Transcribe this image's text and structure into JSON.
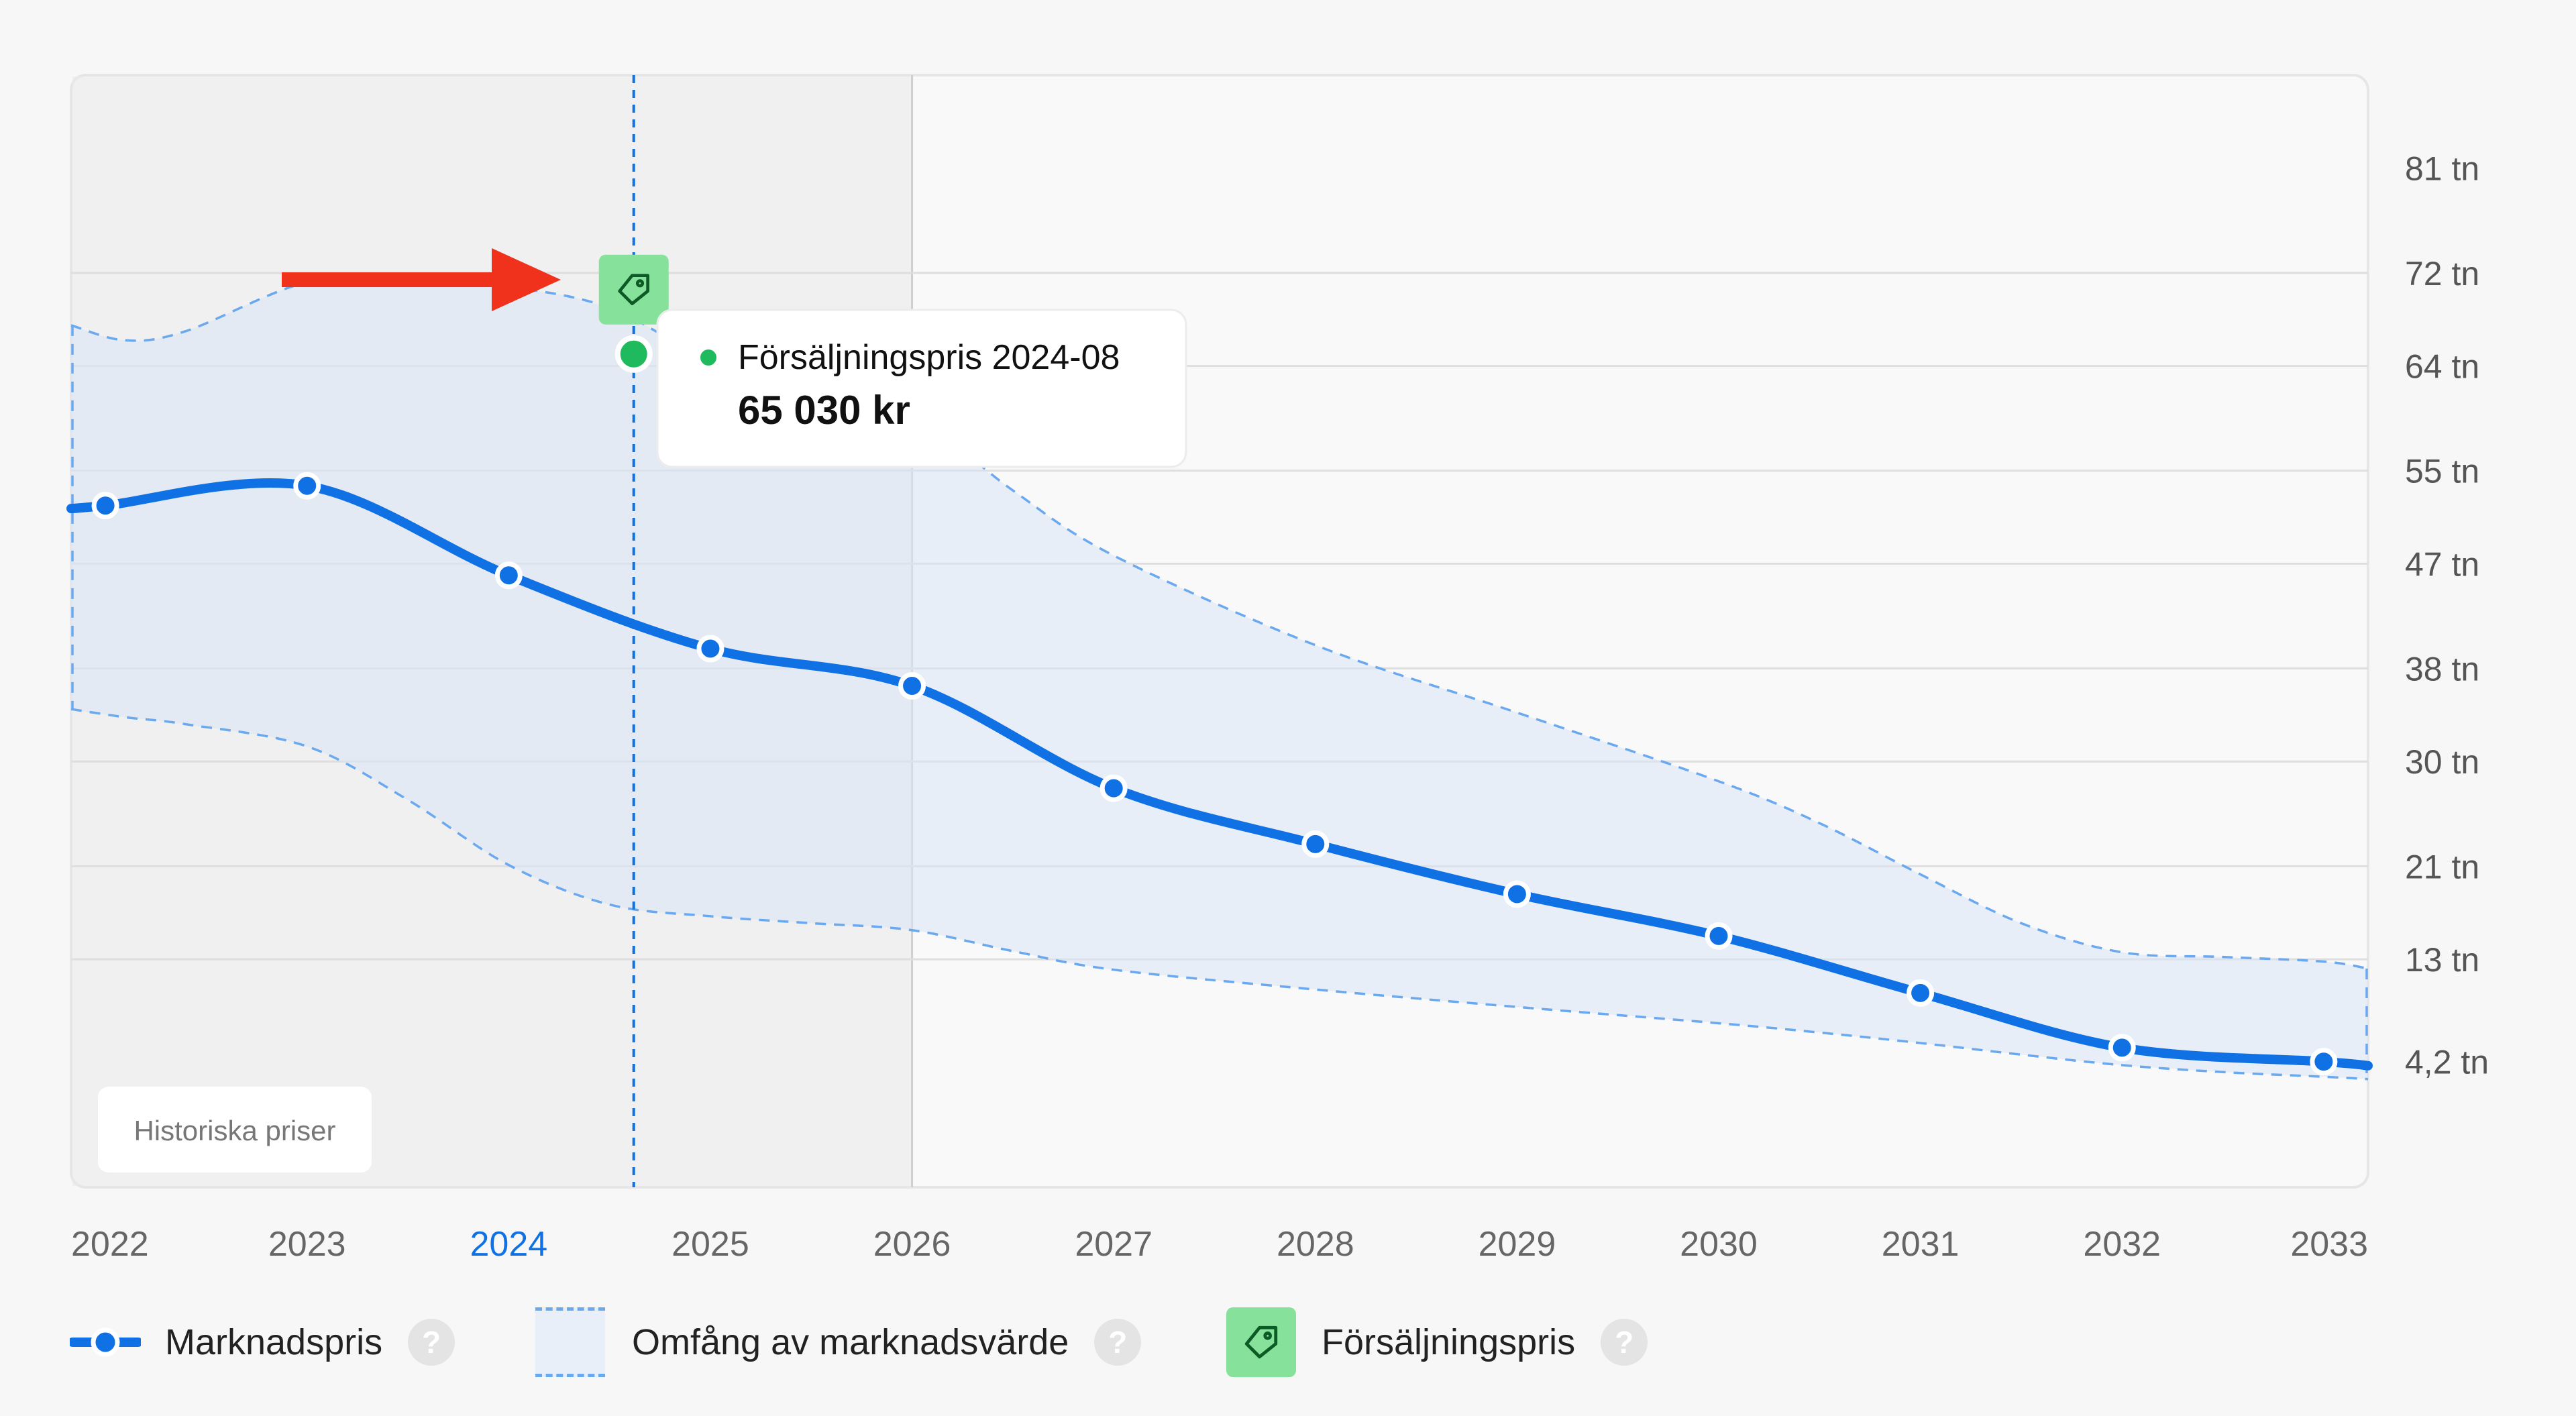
{
  "chart_data": {
    "type": "line",
    "x_ticks": [
      "2022",
      "2023",
      "2024",
      "2025",
      "2026",
      "2027",
      "2028",
      "2029",
      "2030",
      "2031",
      "2032",
      "2033"
    ],
    "highlighted_x_tick": "2024",
    "y_ticks": [
      "81 tn",
      "72 tn",
      "64 tn",
      "55 tn",
      "47 tn",
      "38 tn",
      "30 tn",
      "21 tn",
      "13 tn",
      "4,2 tn"
    ],
    "y_tick_values": [
      81000,
      72000,
      64000,
      55000,
      47000,
      38000,
      30000,
      21000,
      13000,
      4200
    ],
    "xlim": [
      2021.83,
      2033.22
    ],
    "ylim": [
      -6600,
      89000
    ],
    "historical_until": 2026,
    "historical_label": "Historiska priser",
    "series": [
      {
        "name": "Marknadspris",
        "color": "#1071e5",
        "x": [
          2022,
          2023,
          2024,
          2025,
          2026,
          2027,
          2028,
          2029,
          2030,
          2031,
          2032,
          2033
        ],
        "values": [
          52000,
          53700,
          46000,
          39700,
          36500,
          27700,
          22900,
          18600,
          15000,
          10100,
          5400,
          4200
        ]
      }
    ],
    "range": {
      "name": "Omfång av marknadsvärde",
      "x": [
        2021.83,
        2022.1,
        2022.4,
        2023.0,
        2023.5,
        2024.0,
        2024.5,
        2025.0,
        2025.5,
        2026.0,
        2026.5,
        2027.0,
        2028.0,
        2029.0,
        2030.0,
        2030.5,
        2031.0,
        2031.5,
        2032.0,
        2032.5,
        2033.0,
        2033.22
      ],
      "upper": [
        67500,
        66200,
        67000,
        71200,
        71400,
        70800,
        69000,
        64500,
        62300,
        59800,
        53300,
        47700,
        40000,
        34200,
        28300,
        24700,
        20300,
        16100,
        13600,
        13200,
        12800,
        12200
      ],
      "lower": [
        34500,
        33800,
        33200,
        31300,
        26700,
        21100,
        17700,
        16700,
        16100,
        15500,
        13700,
        12100,
        10400,
        8900,
        7500,
        6700,
        5800,
        4800,
        3900,
        3300,
        2900,
        2700
      ]
    },
    "sale": {
      "name": "Försäljningspris",
      "x": 2024.62,
      "value": 65030,
      "color": "#1fba5d",
      "tag_color": "#86e19b",
      "icon": "tag-icon",
      "tooltip_title": "Försäljningspris 2024-08",
      "tooltip_value": "65 030 kr"
    },
    "legend": [
      {
        "label": "Marknadspris",
        "help": "?"
      },
      {
        "label": "Omfång av marknadsvärde",
        "help": "?"
      },
      {
        "label": "Försäljningspris",
        "help": "?"
      }
    ],
    "annotation": {
      "type": "arrow",
      "color": "#f0311b",
      "points_to": "sale"
    },
    "grid": true,
    "legend_position": "bottom"
  }
}
